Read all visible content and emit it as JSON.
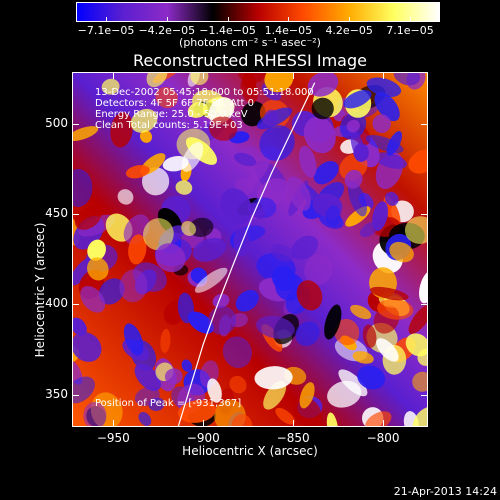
{
  "colorbar": {
    "ticks": [
      "−7.1e−05",
      "−4.2e−05",
      "−1.4e−05",
      "1.4e−05",
      "4.2e−05",
      "7.1e−05"
    ],
    "unit_label": "(photons cm⁻² s⁻¹ asec⁻²)",
    "colors": [
      "#0000ff",
      "#5a1fd0",
      "#8d2bc8",
      "#000000",
      "#b80000",
      "#ff4a00",
      "#ffaa00",
      "#ffff60",
      "#ffffff"
    ]
  },
  "chart_data": {
    "type": "heatmap",
    "title": "Reconstructed RHESSI Image",
    "xlabel": "Heliocentric X (arcsec)",
    "ylabel": "Heliocentric Y (arcsec)",
    "xlim": [
      -973,
      -775
    ],
    "ylim": [
      332,
      529
    ],
    "xticks": [
      -950,
      -900,
      -850,
      -800
    ],
    "xtick_labels": [
      "−950",
      "−900",
      "−850",
      "−800"
    ],
    "yticks": [
      350,
      400,
      450,
      500
    ],
    "ytick_labels": [
      "350",
      "400",
      "450",
      "500"
    ],
    "value_range": [
      -7.1e-05,
      7.1e-05
    ],
    "limb_curve": [
      [
        -914,
        332
      ],
      [
        -907,
        355
      ],
      [
        -900,
        378
      ],
      [
        -892,
        400
      ],
      [
        -883,
        423
      ],
      [
        -873,
        448
      ],
      [
        -862,
        473
      ],
      [
        -851,
        496
      ],
      [
        -838,
        523
      ]
    ],
    "peak_position": [
      -931,
      367
    ],
    "annotations": [
      "13-Dec-2002 05:45:18.000 to 05:51:18.000",
      "Detectors: 4F 5F 6F 7F 8F, Att 0",
      "Energy Range: 25.0 - 50.0 keV",
      "Clean    Total counts: 5.19E+03"
    ],
    "peak_label": "Position of Peak = [-931,367]"
  },
  "footer": "21-Apr-2013 14:24"
}
